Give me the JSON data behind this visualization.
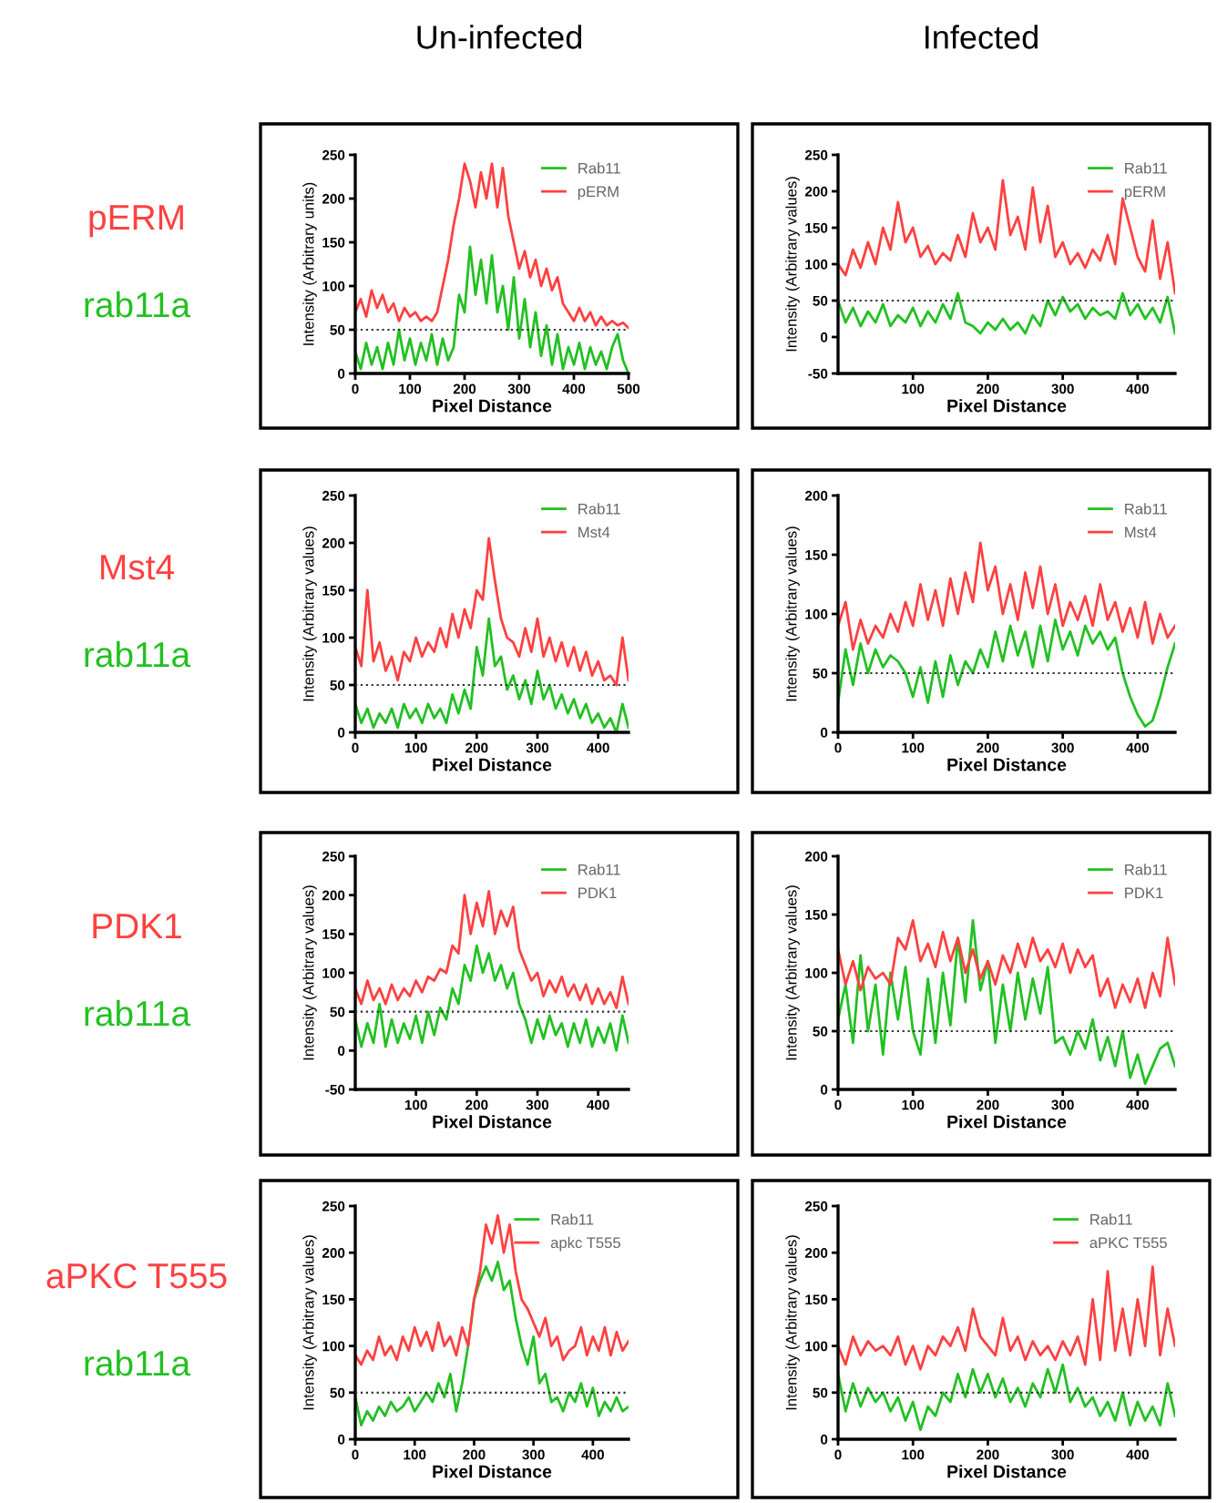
{
  "chart_data": [
    {
      "type": "line",
      "title": "Un-infected",
      "annotations": [
        "pERM",
        "rab11a"
      ],
      "xlabel": "Pixel Distance",
      "ylabel": "Intensity (Arbitrary units)",
      "xlim": [
        0,
        500
      ],
      "xticks": [
        0,
        100,
        200,
        300,
        400,
        500
      ],
      "ylim": [
        0,
        250
      ],
      "yticks": [
        0,
        50,
        100,
        150,
        200,
        250
      ],
      "legend": "top right",
      "grid": false,
      "ref_lines": [
        {
          "axis": "y",
          "value": 50,
          "label": null,
          "color": "#333333",
          "line_style": "dotted"
        }
      ],
      "x": [
        0,
        10,
        20,
        30,
        40,
        50,
        60,
        70,
        80,
        90,
        100,
        110,
        120,
        130,
        140,
        150,
        160,
        170,
        180,
        190,
        200,
        210,
        220,
        230,
        240,
        250,
        260,
        270,
        280,
        290,
        300,
        310,
        320,
        330,
        340,
        350,
        360,
        370,
        380,
        390,
        400,
        410,
        420,
        430,
        440,
        450,
        460,
        470,
        480,
        490,
        500
      ],
      "series": [
        {
          "name": "Rab11",
          "color": "#22c022",
          "values": [
            25,
            5,
            35,
            10,
            30,
            5,
            35,
            10,
            50,
            15,
            40,
            10,
            35,
            15,
            45,
            10,
            40,
            15,
            30,
            90,
            70,
            145,
            90,
            130,
            80,
            135,
            70,
            100,
            50,
            110,
            40,
            85,
            30,
            70,
            20,
            55,
            10,
            45,
            5,
            30,
            10,
            35,
            5,
            30,
            10,
            25,
            5,
            30,
            45,
            15,
            0
          ]
        },
        {
          "name": "pERM",
          "color": "#ff4040",
          "values": [
            70,
            85,
            65,
            95,
            75,
            90,
            70,
            80,
            60,
            75,
            65,
            70,
            60,
            65,
            60,
            70,
            100,
            130,
            170,
            200,
            240,
            220,
            190,
            230,
            200,
            240,
            190,
            235,
            180,
            150,
            120,
            140,
            110,
            130,
            100,
            120,
            95,
            110,
            80,
            70,
            60,
            75,
            60,
            70,
            55,
            65,
            55,
            60,
            55,
            58,
            52
          ]
        }
      ]
    },
    {
      "type": "line",
      "title": "Infected",
      "xlabel": "Pixel Distance",
      "ylabel": "Intensity (Arbitrary values)",
      "xlim": [
        0,
        450
      ],
      "xticks": [
        100,
        200,
        300,
        400
      ],
      "ylim": [
        -50,
        250
      ],
      "yticks": [
        -50,
        0,
        50,
        100,
        150,
        200,
        250
      ],
      "legend": "top right",
      "grid": false,
      "ref_lines": [
        {
          "axis": "y",
          "value": 50,
          "label": null,
          "color": "#333333",
          "line_style": "dotted"
        }
      ],
      "x": [
        0,
        10,
        20,
        30,
        40,
        50,
        60,
        70,
        80,
        90,
        100,
        110,
        120,
        130,
        140,
        150,
        160,
        170,
        180,
        190,
        200,
        210,
        220,
        230,
        240,
        250,
        260,
        270,
        280,
        290,
        300,
        310,
        320,
        330,
        340,
        350,
        360,
        370,
        380,
        390,
        400,
        410,
        420,
        430,
        440,
        450
      ],
      "series": [
        {
          "name": "Rab11",
          "color": "#22c022",
          "values": [
            50,
            20,
            40,
            15,
            35,
            20,
            45,
            15,
            30,
            20,
            40,
            15,
            35,
            20,
            45,
            25,
            60,
            20,
            15,
            5,
            20,
            10,
            25,
            10,
            20,
            5,
            30,
            15,
            50,
            30,
            55,
            35,
            45,
            25,
            40,
            30,
            35,
            25,
            60,
            30,
            45,
            25,
            40,
            20,
            55,
            5
          ]
        },
        {
          "name": "pERM",
          "color": "#ff4040",
          "values": [
            100,
            85,
            120,
            95,
            130,
            100,
            150,
            120,
            185,
            130,
            150,
            110,
            125,
            100,
            115,
            105,
            140,
            110,
            170,
            130,
            150,
            120,
            215,
            140,
            165,
            120,
            205,
            130,
            180,
            110,
            130,
            100,
            115,
            95,
            120,
            105,
            140,
            100,
            190,
            150,
            110,
            90,
            160,
            80,
            130,
            60
          ]
        }
      ]
    },
    {
      "type": "line",
      "annotations": [
        "Mst4",
        "rab11a"
      ],
      "xlabel": "Pixel Distance",
      "ylabel": "Intensity (Arbitrary values)",
      "xlim": [
        0,
        450
      ],
      "xticks": [
        0,
        100,
        200,
        300,
        400
      ],
      "ylim": [
        0,
        250
      ],
      "yticks": [
        0,
        50,
        100,
        150,
        200,
        250
      ],
      "legend": "top right",
      "grid": false,
      "ref_lines": [
        {
          "axis": "y",
          "value": 50,
          "label": null,
          "color": "#333333",
          "line_style": "dotted"
        }
      ],
      "x": [
        0,
        10,
        20,
        30,
        40,
        50,
        60,
        70,
        80,
        90,
        100,
        110,
        120,
        130,
        140,
        150,
        160,
        170,
        180,
        190,
        200,
        210,
        220,
        230,
        240,
        250,
        260,
        270,
        280,
        290,
        300,
        310,
        320,
        330,
        340,
        350,
        360,
        370,
        380,
        390,
        400,
        410,
        420,
        430,
        440,
        450
      ],
      "series": [
        {
          "name": "Rab11",
          "color": "#22c022",
          "values": [
            30,
            10,
            25,
            5,
            20,
            10,
            25,
            5,
            30,
            15,
            25,
            10,
            30,
            15,
            25,
            10,
            40,
            20,
            45,
            25,
            90,
            60,
            120,
            70,
            80,
            45,
            60,
            35,
            55,
            30,
            65,
            35,
            50,
            25,
            40,
            20,
            35,
            15,
            30,
            10,
            20,
            5,
            15,
            0,
            30,
            5
          ]
        },
        {
          "name": "Mst4",
          "color": "#ff4040",
          "values": [
            90,
            70,
            150,
            75,
            95,
            65,
            80,
            55,
            85,
            75,
            100,
            80,
            95,
            85,
            110,
            90,
            125,
            100,
            130,
            110,
            150,
            140,
            205,
            160,
            120,
            100,
            95,
            80,
            110,
            85,
            120,
            80,
            100,
            75,
            95,
            70,
            90,
            65,
            85,
            60,
            75,
            55,
            60,
            50,
            100,
            55
          ]
        }
      ]
    },
    {
      "type": "line",
      "xlabel": "Pixel Distance",
      "ylabel": "Intensity (Arbitrary values)",
      "xlim": [
        0,
        450
      ],
      "xticks": [
        0,
        100,
        200,
        300,
        400
      ],
      "ylim": [
        0,
        200
      ],
      "yticks": [
        0,
        50,
        100,
        150,
        200
      ],
      "legend": "top right",
      "grid": false,
      "ref_lines": [
        {
          "axis": "y",
          "value": 50,
          "label": null,
          "color": "#333333",
          "line_style": "dotted"
        }
      ],
      "x": [
        0,
        10,
        20,
        30,
        40,
        50,
        60,
        70,
        80,
        90,
        100,
        110,
        120,
        130,
        140,
        150,
        160,
        170,
        180,
        190,
        200,
        210,
        220,
        230,
        240,
        250,
        260,
        270,
        280,
        290,
        300,
        310,
        320,
        330,
        340,
        350,
        360,
        370,
        380,
        390,
        400,
        410,
        420,
        430,
        440,
        450
      ],
      "series": [
        {
          "name": "Rab11",
          "color": "#22c022",
          "values": [
            25,
            70,
            40,
            75,
            50,
            70,
            55,
            65,
            60,
            50,
            30,
            55,
            25,
            60,
            30,
            65,
            40,
            60,
            50,
            70,
            55,
            85,
            60,
            90,
            65,
            85,
            55,
            90,
            60,
            95,
            70,
            85,
            65,
            90,
            75,
            85,
            70,
            80,
            50,
            30,
            15,
            5,
            10,
            30,
            55,
            75
          ]
        },
        {
          "name": "Mst4",
          "color": "#ff4040",
          "values": [
            90,
            110,
            70,
            95,
            75,
            90,
            80,
            100,
            85,
            110,
            90,
            125,
            95,
            120,
            90,
            130,
            100,
            135,
            110,
            160,
            120,
            140,
            100,
            125,
            95,
            135,
            105,
            140,
            100,
            125,
            90,
            110,
            95,
            115,
            90,
            125,
            95,
            110,
            85,
            105,
            80,
            110,
            75,
            100,
            80,
            90
          ]
        }
      ]
    },
    {
      "type": "line",
      "annotations": [
        "PDK1",
        "rab11a"
      ],
      "xlabel": "Pixel Distance",
      "ylabel": "Intensity (Arbitrary values)",
      "xlim": [
        0,
        450
      ],
      "xticks": [
        100,
        200,
        300,
        400
      ],
      "ylim": [
        -50,
        250
      ],
      "yticks": [
        -50,
        0,
        50,
        100,
        150,
        200,
        250
      ],
      "legend": "top right",
      "grid": false,
      "ref_lines": [
        {
          "axis": "y",
          "value": 50,
          "label": null,
          "color": "#333333",
          "line_style": "dotted"
        }
      ],
      "x": [
        0,
        10,
        20,
        30,
        40,
        50,
        60,
        70,
        80,
        90,
        100,
        110,
        120,
        130,
        140,
        150,
        160,
        170,
        180,
        190,
        200,
        210,
        220,
        230,
        240,
        250,
        260,
        270,
        280,
        290,
        300,
        310,
        320,
        330,
        340,
        350,
        360,
        370,
        380,
        390,
        400,
        410,
        420,
        430,
        440,
        450
      ],
      "series": [
        {
          "name": "Rab11",
          "color": "#22c022",
          "values": [
            40,
            5,
            35,
            10,
            60,
            5,
            40,
            10,
            35,
            15,
            45,
            10,
            50,
            20,
            55,
            40,
            80,
            60,
            110,
            90,
            135,
            100,
            125,
            90,
            110,
            80,
            100,
            60,
            40,
            10,
            40,
            15,
            45,
            20,
            35,
            5,
            35,
            10,
            40,
            5,
            30,
            10,
            35,
            0,
            45,
            10
          ]
        },
        {
          "name": "PDK1",
          "color": "#ff4040",
          "values": [
            80,
            60,
            90,
            65,
            80,
            60,
            85,
            65,
            80,
            70,
            90,
            75,
            95,
            90,
            105,
            100,
            135,
            125,
            200,
            150,
            190,
            160,
            205,
            150,
            180,
            160,
            185,
            130,
            110,
            90,
            100,
            70,
            90,
            75,
            95,
            70,
            85,
            65,
            85,
            60,
            80,
            60,
            75,
            55,
            95,
            60
          ]
        }
      ]
    },
    {
      "type": "line",
      "xlabel": "Pixel Distance",
      "ylabel": "Intensity (Arbitrary values)",
      "xlim": [
        0,
        450
      ],
      "xticks": [
        0,
        100,
        200,
        300,
        400
      ],
      "ylim": [
        0,
        200
      ],
      "yticks": [
        0,
        50,
        100,
        150,
        200
      ],
      "legend": "top right",
      "grid": false,
      "ref_lines": [
        {
          "axis": "y",
          "value": 50,
          "label": null,
          "color": "#333333",
          "line_style": "dotted"
        }
      ],
      "x": [
        0,
        10,
        20,
        30,
        40,
        50,
        60,
        70,
        80,
        90,
        100,
        110,
        120,
        130,
        140,
        150,
        160,
        170,
        180,
        190,
        200,
        210,
        220,
        230,
        240,
        250,
        260,
        270,
        280,
        290,
        300,
        310,
        320,
        330,
        340,
        350,
        360,
        370,
        380,
        390,
        400,
        410,
        420,
        430,
        440,
        450
      ],
      "series": [
        {
          "name": "Rab11",
          "color": "#22c022",
          "values": [
            60,
            90,
            40,
            115,
            50,
            90,
            30,
            100,
            60,
            105,
            50,
            30,
            95,
            40,
            100,
            55,
            130,
            75,
            145,
            85,
            110,
            40,
            90,
            50,
            100,
            60,
            95,
            65,
            105,
            40,
            45,
            30,
            50,
            35,
            60,
            25,
            45,
            20,
            50,
            10,
            30,
            5,
            20,
            35,
            40,
            20
          ]
        },
        {
          "name": "PDK1",
          "color": "#ff4040",
          "values": [
            120,
            90,
            110,
            85,
            105,
            95,
            100,
            90,
            130,
            120,
            145,
            110,
            125,
            105,
            135,
            110,
            130,
            100,
            120,
            95,
            110,
            90,
            115,
            100,
            125,
            105,
            130,
            110,
            120,
            105,
            125,
            100,
            120,
            105,
            115,
            80,
            95,
            70,
            90,
            75,
            95,
            70,
            100,
            80,
            130,
            90
          ]
        }
      ]
    },
    {
      "type": "line",
      "annotations": [
        "aPKC T555",
        "rab11a"
      ],
      "xlabel": "Pixel Distance",
      "ylabel": "Intensity (Arbitrary values)",
      "xlim": [
        0,
        460
      ],
      "xticks": [
        0,
        100,
        200,
        300,
        400
      ],
      "ylim": [
        0,
        250
      ],
      "yticks": [
        0,
        50,
        100,
        150,
        200,
        250
      ],
      "legend": "top right",
      "grid": false,
      "ref_lines": [
        {
          "axis": "y",
          "value": 50,
          "label": null,
          "color": "#333333",
          "line_style": "dotted"
        }
      ],
      "x": [
        0,
        10,
        20,
        30,
        40,
        50,
        60,
        70,
        80,
        90,
        100,
        110,
        120,
        130,
        140,
        150,
        160,
        170,
        180,
        190,
        200,
        210,
        220,
        230,
        240,
        250,
        260,
        270,
        280,
        290,
        300,
        310,
        320,
        330,
        340,
        350,
        360,
        370,
        380,
        390,
        400,
        410,
        420,
        430,
        440,
        450,
        460
      ],
      "series": [
        {
          "name": "Rab11",
          "color": "#22c022",
          "values": [
            45,
            15,
            30,
            20,
            35,
            25,
            40,
            30,
            35,
            45,
            30,
            40,
            50,
            40,
            60,
            45,
            70,
            30,
            60,
            100,
            150,
            170,
            185,
            170,
            190,
            160,
            170,
            130,
            100,
            80,
            110,
            60,
            70,
            40,
            45,
            30,
            50,
            40,
            60,
            35,
            55,
            25,
            40,
            30,
            45,
            30,
            35
          ]
        },
        {
          "name": "apkc T555",
          "color": "#ff4040",
          "values": [
            90,
            80,
            95,
            85,
            110,
            90,
            100,
            85,
            110,
            95,
            120,
            100,
            115,
            95,
            125,
            100,
            110,
            90,
            120,
            100,
            150,
            180,
            230,
            210,
            240,
            200,
            230,
            180,
            150,
            140,
            125,
            110,
            130,
            100,
            110,
            85,
            95,
            100,
            120,
            90,
            110,
            95,
            120,
            90,
            115,
            95,
            105
          ]
        }
      ]
    },
    {
      "type": "line",
      "xlabel": "Pixel Distance",
      "ylabel": "Intensity (Arbitrary values)",
      "xlim": [
        0,
        450
      ],
      "xticks": [
        0,
        100,
        200,
        300,
        400
      ],
      "ylim": [
        0,
        250
      ],
      "yticks": [
        0,
        50,
        100,
        150,
        200,
        250
      ],
      "legend": "top right",
      "grid": false,
      "ref_lines": [
        {
          "axis": "y",
          "value": 50,
          "label": null,
          "color": "#333333",
          "line_style": "dotted"
        }
      ],
      "x": [
        0,
        10,
        20,
        30,
        40,
        50,
        60,
        70,
        80,
        90,
        100,
        110,
        120,
        130,
        140,
        150,
        160,
        170,
        180,
        190,
        200,
        210,
        220,
        230,
        240,
        250,
        260,
        270,
        280,
        290,
        300,
        310,
        320,
        330,
        340,
        350,
        360,
        370,
        380,
        390,
        400,
        410,
        420,
        430,
        440,
        450
      ],
      "series": [
        {
          "name": "Rab11",
          "color": "#22c022",
          "values": [
            70,
            30,
            60,
            35,
            55,
            40,
            50,
            30,
            45,
            20,
            40,
            10,
            35,
            25,
            50,
            40,
            70,
            45,
            75,
            50,
            70,
            45,
            65,
            40,
            55,
            35,
            60,
            45,
            75,
            50,
            80,
            40,
            55,
            35,
            45,
            25,
            40,
            20,
            50,
            15,
            40,
            20,
            35,
            15,
            60,
            25
          ]
        },
        {
          "name": "aPKC T555",
          "color": "#ff4040",
          "values": [
            100,
            80,
            110,
            90,
            105,
            95,
            100,
            90,
            110,
            80,
            100,
            75,
            100,
            90,
            110,
            100,
            120,
            95,
            140,
            110,
            100,
            90,
            130,
            95,
            110,
            85,
            105,
            90,
            100,
            85,
            105,
            90,
            110,
            80,
            150,
            85,
            180,
            95,
            140,
            90,
            150,
            100,
            185,
            90,
            140,
            100
          ]
        }
      ]
    }
  ]
}
